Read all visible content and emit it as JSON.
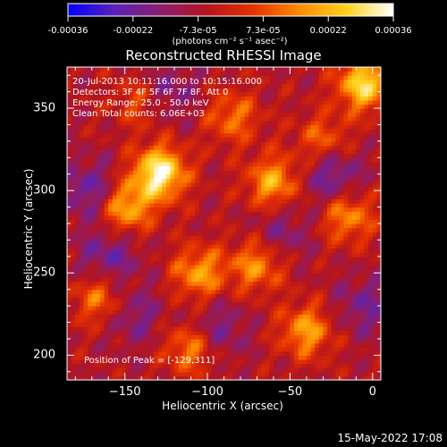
{
  "colorbar": {
    "ticks": [
      "-0.00036",
      "-0.00022",
      "-7.3e-05",
      "7.3e-05",
      "0.00022",
      "0.00036"
    ],
    "units_label": "(photons cm⁻² s⁻¹ asec⁻²)",
    "range": [
      -0.00036,
      0.00036
    ],
    "colormap": [
      "#0000ff",
      "#5a22b8",
      "#8c1e6e",
      "#b4141e",
      "#e63200",
      "#ff8c00",
      "#ffd21e",
      "#ffffff"
    ]
  },
  "plot": {
    "title": "Reconstructed RHESSI Image",
    "info_lines": [
      "20-Jul-2013 10:11:16.000 to 10:15:16.000",
      "Detectors: 3F 4F 5F 6F 7F 8F, Att 0",
      "Energy Range: 25.0 - 50.0 keV",
      "Clean     Total counts: 6.06E+03"
    ],
    "peak_label": "Position of Peak = [-129,311]",
    "footer_timestamp": "15-May-2022 17:08"
  },
  "chart_data": {
    "type": "heatmap",
    "title": "Reconstructed RHESSI Image",
    "xlabel": "Heliocentric X (arcsec)",
    "ylabel": "Heliocentric Y (arcsec)",
    "xlim": [
      -185,
      5
    ],
    "ylim": [
      185,
      375
    ],
    "xticks": [
      -150,
      -100,
      -50,
      0
    ],
    "yticks": [
      200,
      250,
      300,
      350
    ],
    "xtick_labels": [
      "−150",
      "−100",
      "−50",
      "0"
    ],
    "ytick_labels": [
      "200",
      "250",
      "300",
      "350"
    ],
    "grid": false,
    "colorbar_position": "top",
    "z_range": [
      -0.00036,
      0.00036
    ],
    "z_units": "photons cm^-2 s^-1 asec^-2",
    "peak": {
      "x": -129,
      "y": 311
    },
    "hotspots": [
      {
        "x": -129,
        "y": 311,
        "level": 1.0
      },
      {
        "x": -5,
        "y": 365,
        "level": 0.85
      },
      {
        "x": -150,
        "y": 290,
        "level": 0.7
      },
      {
        "x": -60,
        "y": 305,
        "level": 0.65
      },
      {
        "x": -105,
        "y": 250,
        "level": 0.6
      },
      {
        "x": -70,
        "y": 255,
        "level": 0.55
      },
      {
        "x": -40,
        "y": 215,
        "level": 0.6
      },
      {
        "x": -110,
        "y": 205,
        "level": 0.55
      },
      {
        "x": -165,
        "y": 235,
        "level": 0.5
      },
      {
        "x": -15,
        "y": 285,
        "level": 0.55
      },
      {
        "x": -85,
        "y": 345,
        "level": 0.45
      },
      {
        "x": -140,
        "y": 355,
        "level": 0.4
      },
      {
        "x": -30,
        "y": 330,
        "level": 0.45
      }
    ],
    "coldspots": [
      {
        "x": -170,
        "y": 300,
        "level": 0.6
      },
      {
        "x": -25,
        "y": 310,
        "level": 0.65
      },
      {
        "x": -160,
        "y": 260,
        "level": 0.55
      },
      {
        "x": -125,
        "y": 360,
        "level": 0.5
      },
      {
        "x": -95,
        "y": 215,
        "level": 0.5
      },
      {
        "x": -145,
        "y": 225,
        "level": 0.45
      },
      {
        "x": -55,
        "y": 275,
        "level": 0.4
      },
      {
        "x": -5,
        "y": 230,
        "level": 0.45
      }
    ]
  }
}
